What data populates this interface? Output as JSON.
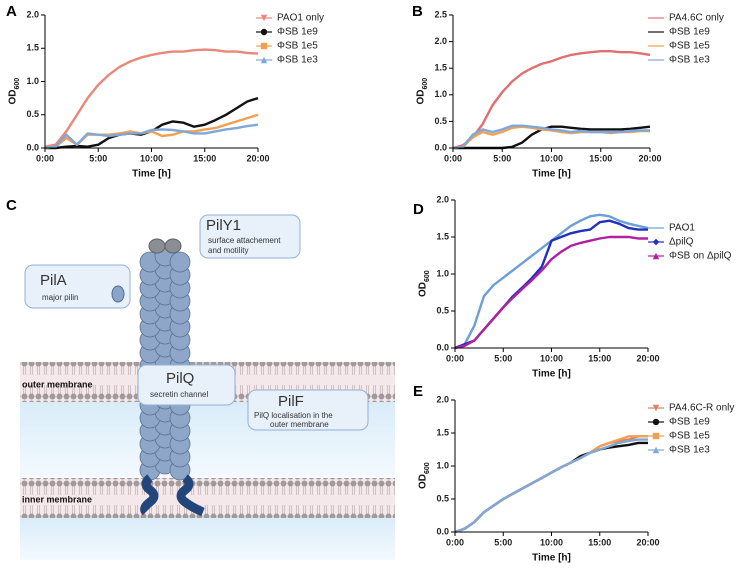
{
  "chart_data": [
    {
      "type": "line",
      "label": "A",
      "ylabel": "OD",
      "ylabel_subscript": "600",
      "xlabel": "Time [h]",
      "x": [
        0,
        1,
        2,
        3,
        4,
        5,
        6,
        7,
        8,
        9,
        10,
        11,
        12,
        13,
        14,
        15,
        16,
        17,
        18,
        19,
        20
      ],
      "xlim": [
        0,
        20
      ],
      "xticks": [
        {
          "value": 0,
          "label": "0:00"
        },
        {
          "value": 5,
          "label": "5:00"
        },
        {
          "value": 10,
          "label": "10:00"
        },
        {
          "value": 15,
          "label": "15:00"
        },
        {
          "value": 20,
          "label": "20:00"
        }
      ],
      "ylim": [
        0,
        2
      ],
      "yticks": [
        {
          "value": 0,
          "label": "0.0"
        },
        0.5,
        {
          "value": 1,
          "label": "1.0"
        },
        1.5,
        {
          "value": 2,
          "label": "2.0"
        }
      ],
      "series": [
        {
          "name": "PAO1 only",
          "color": "#e8877a",
          "marker": "triangle-down",
          "values": [
            0.02,
            0.05,
            0.25,
            0.5,
            0.75,
            0.95,
            1.1,
            1.22,
            1.3,
            1.36,
            1.4,
            1.43,
            1.45,
            1.45,
            1.47,
            1.48,
            1.47,
            1.45,
            1.45,
            1.43,
            1.42
          ]
        },
        {
          "name": "ΦSB 1e9",
          "color": "#111111",
          "marker": "circle",
          "values": [
            0,
            0,
            0.02,
            0.03,
            0.02,
            0.05,
            0.15,
            0.2,
            0.22,
            0.2,
            0.25,
            0.35,
            0.4,
            0.38,
            0.32,
            0.35,
            0.42,
            0.5,
            0.6,
            0.7,
            0.75
          ]
        },
        {
          "name": "ΦSB 1e5",
          "color": "#f0a050",
          "marker": "square",
          "values": [
            0,
            0.02,
            0.15,
            0.05,
            0.2,
            0.2,
            0.2,
            0.22,
            0.25,
            0.22,
            0.25,
            0.18,
            0.2,
            0.25,
            0.25,
            0.28,
            0.3,
            0.35,
            0.4,
            0.45,
            0.5
          ]
        },
        {
          "name": "ΦSB 1e3",
          "color": "#7fa8d8",
          "marker": "triangle",
          "values": [
            0,
            0.02,
            0.2,
            0.05,
            0.22,
            0.2,
            0.18,
            0.2,
            0.22,
            0.22,
            0.27,
            0.28,
            0.27,
            0.25,
            0.22,
            0.22,
            0.25,
            0.28,
            0.3,
            0.33,
            0.35
          ]
        }
      ]
    },
    {
      "type": "line",
      "label": "B",
      "ylabel": "OD",
      "ylabel_subscript": "600",
      "xlabel": "Time [h]",
      "x": [
        0,
        1,
        2,
        3,
        4,
        5,
        6,
        7,
        8,
        9,
        10,
        11,
        12,
        13,
        14,
        15,
        16,
        17,
        18,
        19,
        20
      ],
      "xlim": [
        0,
        20
      ],
      "xticks": [
        {
          "value": 0,
          "label": "0:00"
        },
        {
          "value": 5,
          "label": "5:00"
        },
        {
          "value": 10,
          "label": "10:00"
        },
        {
          "value": 15,
          "label": "15:00"
        },
        {
          "value": 20,
          "label": "20:00"
        }
      ],
      "ylim": [
        0,
        2.5
      ],
      "yticks": [
        {
          "value": 0,
          "label": "0.0"
        },
        0.5,
        {
          "value": 1,
          "label": "1.0"
        },
        1.5,
        {
          "value": 2,
          "label": "2.0"
        },
        2.5
      ],
      "series": [
        {
          "name": "PA4.6C only",
          "color": "#e07070",
          "marker": "line",
          "values": [
            0,
            0.05,
            0.2,
            0.45,
            0.8,
            1.05,
            1.25,
            1.4,
            1.5,
            1.58,
            1.63,
            1.7,
            1.75,
            1.78,
            1.8,
            1.82,
            1.82,
            1.8,
            1.8,
            1.78,
            1.75
          ]
        },
        {
          "name": "ΦSB 1e9",
          "color": "#111111",
          "marker": "line",
          "values": [
            0,
            0,
            0,
            0,
            0,
            0,
            0.02,
            0.1,
            0.25,
            0.35,
            0.4,
            0.4,
            0.38,
            0.36,
            0.35,
            0.35,
            0.35,
            0.35,
            0.36,
            0.38,
            0.4
          ]
        },
        {
          "name": "ΦSB 1e5",
          "color": "#f0a050",
          "marker": "line",
          "values": [
            0,
            0.02,
            0.2,
            0.3,
            0.25,
            0.3,
            0.38,
            0.4,
            0.38,
            0.35,
            0.33,
            0.3,
            0.28,
            0.3,
            0.3,
            0.3,
            0.28,
            0.3,
            0.3,
            0.32,
            0.32
          ]
        },
        {
          "name": "ΦSB 1e3",
          "color": "#7fa8d8",
          "marker": "line",
          "values": [
            0,
            0.02,
            0.25,
            0.35,
            0.3,
            0.35,
            0.42,
            0.42,
            0.4,
            0.38,
            0.35,
            0.33,
            0.3,
            0.32,
            0.3,
            0.3,
            0.3,
            0.3,
            0.32,
            0.33,
            0.33
          ]
        }
      ]
    },
    {
      "type": "line",
      "label": "D",
      "ylabel": "OD",
      "ylabel_subscript": "600",
      "xlabel": "Time [h]",
      "x": [
        0,
        1,
        2,
        3,
        4,
        5,
        6,
        7,
        8,
        9,
        10,
        11,
        12,
        13,
        14,
        15,
        16,
        17,
        18,
        19,
        20
      ],
      "xlim": [
        0,
        20
      ],
      "xticks": [
        {
          "value": 0,
          "label": "0:00"
        },
        {
          "value": 5,
          "label": "5:00"
        },
        {
          "value": 10,
          "label": "10:00"
        },
        {
          "value": 15,
          "label": "15:00"
        },
        {
          "value": 20,
          "label": "20:00"
        }
      ],
      "ylim": [
        0,
        2
      ],
      "yticks": [
        {
          "value": 0,
          "label": "0.0"
        },
        0.5,
        {
          "value": 1,
          "label": "1.0"
        },
        1.5,
        {
          "value": 2,
          "label": "2.0"
        }
      ],
      "series": [
        {
          "name": "PAO1",
          "color": "#6a9fd8",
          "marker": "line",
          "values": [
            0,
            0.05,
            0.3,
            0.7,
            0.85,
            0.95,
            1.05,
            1.15,
            1.25,
            1.35,
            1.45,
            1.55,
            1.65,
            1.72,
            1.78,
            1.8,
            1.78,
            1.72,
            1.68,
            1.65,
            1.62
          ]
        },
        {
          "name": "ΔpilQ",
          "color": "#2030c0",
          "marker": "diamond",
          "values": [
            0,
            0.05,
            0.1,
            0.25,
            0.4,
            0.55,
            0.7,
            0.82,
            0.95,
            1.1,
            1.45,
            1.5,
            1.55,
            1.58,
            1.6,
            1.7,
            1.72,
            1.68,
            1.62,
            1.6,
            1.6
          ]
        },
        {
          "name": "ΦSB on ΔpilQ",
          "color": "#b020a0",
          "marker": "triangle",
          "values": [
            0,
            0.03,
            0.1,
            0.25,
            0.4,
            0.55,
            0.68,
            0.8,
            0.92,
            1.05,
            1.2,
            1.3,
            1.38,
            1.42,
            1.45,
            1.48,
            1.5,
            1.5,
            1.5,
            1.48,
            1.48
          ]
        }
      ]
    },
    {
      "type": "line",
      "label": "E",
      "ylabel": "OD",
      "ylabel_subscript": "600",
      "xlabel": "Time [h]",
      "x": [
        0,
        1,
        2,
        3,
        4,
        5,
        6,
        7,
        8,
        9,
        10,
        11,
        12,
        13,
        14,
        15,
        16,
        17,
        18,
        19,
        20
      ],
      "xlim": [
        0,
        20
      ],
      "xticks": [
        {
          "value": 0,
          "label": "0:00"
        },
        {
          "value": 5,
          "label": "5:00"
        },
        {
          "value": 10,
          "label": "10:00"
        },
        {
          "value": 15,
          "label": "15:00"
        },
        {
          "value": 20,
          "label": "20:00"
        }
      ],
      "ylim": [
        0,
        2
      ],
      "yticks": [
        {
          "value": 0,
          "label": "0.0"
        },
        0.5,
        {
          "value": 1,
          "label": "1.0"
        },
        1.5,
        {
          "value": 2,
          "label": "2.0"
        }
      ],
      "series": [
        {
          "name": "PA4.6C-R only",
          "color": "#e08060",
          "marker": "triangle-down",
          "values": [
            0,
            0.05,
            0.15,
            0.3,
            0.4,
            0.5,
            0.58,
            0.66,
            0.74,
            0.82,
            0.9,
            0.98,
            1.05,
            1.12,
            1.2,
            1.3,
            1.35,
            1.38,
            1.4,
            1.45,
            1.45
          ]
        },
        {
          "name": "ΦSB 1e9",
          "color": "#111111",
          "marker": "circle",
          "values": [
            0,
            0.05,
            0.15,
            0.3,
            0.4,
            0.5,
            0.58,
            0.66,
            0.74,
            0.82,
            0.9,
            0.98,
            1.05,
            1.15,
            1.2,
            1.25,
            1.28,
            1.3,
            1.32,
            1.35,
            1.35
          ]
        },
        {
          "name": "ΦSB 1e5",
          "color": "#f0a050",
          "marker": "square",
          "values": [
            0,
            0.05,
            0.15,
            0.3,
            0.4,
            0.5,
            0.58,
            0.66,
            0.74,
            0.82,
            0.9,
            0.98,
            1.05,
            1.12,
            1.2,
            1.3,
            1.35,
            1.4,
            1.45,
            1.45,
            1.45
          ]
        },
        {
          "name": "ΦSB 1e3",
          "color": "#7fa8d8",
          "marker": "triangle",
          "values": [
            0,
            0.05,
            0.15,
            0.3,
            0.4,
            0.5,
            0.58,
            0.66,
            0.74,
            0.82,
            0.9,
            0.98,
            1.05,
            1.12,
            1.2,
            1.25,
            1.3,
            1.35,
            1.38,
            1.4,
            1.4
          ]
        }
      ]
    }
  ],
  "diagram": {
    "label": "C",
    "pily1": {
      "title": "PilY1",
      "lines": [
        "surface attachement",
        "and motility"
      ]
    },
    "pila": {
      "title": "PilA",
      "lines": [
        "major pilin"
      ]
    },
    "pilq": {
      "title": "PilQ",
      "lines": [
        "secretin channel"
      ]
    },
    "pilf": {
      "title": "PilF",
      "lines": [
        "PilQ localisation in the",
        "outer membrane"
      ]
    },
    "outer": "outer membrane",
    "inner": "inner membrane"
  }
}
